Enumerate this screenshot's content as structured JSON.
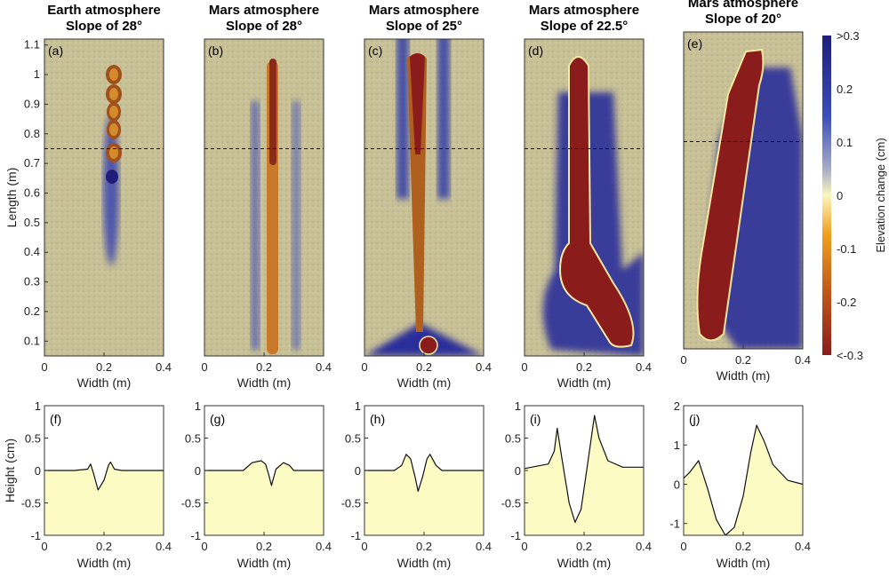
{
  "colorbar": {
    "label": "Elevation change (cm)",
    "ticks": [
      ">0.3",
      "0.2",
      "0.1",
      "0",
      "-0.1",
      "-0.2",
      "<-0.3"
    ],
    "colors": [
      "#1e1f7a",
      "#3b4db8",
      "#9fa6c8",
      "#fbf6c0",
      "#f0a020",
      "#c05a1a",
      "#8b1c1c"
    ]
  },
  "chart_data": [
    {
      "type": "heatmap",
      "panel": "(a)",
      "title": [
        "Earth atmosphere",
        "Slope of 28°"
      ],
      "xlabel": "Width (m)",
      "ylabel": "Length (m)",
      "xlim": [
        0,
        0.4
      ],
      "ylim": [
        0.05,
        1.12
      ],
      "xticks": [
        "0",
        "0.2",
        "0.4"
      ],
      "yticks": [
        "0.1",
        "0.2",
        "0.3",
        "0.4",
        "0.5",
        "0.6",
        "0.7",
        "0.8",
        "0.9",
        "1",
        "1.1"
      ],
      "profile_line_length": 0.75
    },
    {
      "type": "heatmap",
      "panel": "(b)",
      "title": [
        "Mars atmosphere",
        "Slope of 28°"
      ],
      "xlabel": "Width (m)",
      "xlim": [
        0,
        0.4
      ],
      "xticks": [
        "0",
        "0.2",
        "0.4"
      ],
      "profile_line_length": 0.75
    },
    {
      "type": "heatmap",
      "panel": "(c)",
      "title": [
        "Mars atmosphere",
        "Slope of 25°"
      ],
      "xlabel": "Width (m)",
      "xlim": [
        0,
        0.4
      ],
      "xticks": [
        "0",
        "0.2",
        "0.4"
      ],
      "profile_line_length": 0.75
    },
    {
      "type": "heatmap",
      "panel": "(d)",
      "title": [
        "Mars atmosphere",
        "Slope of 22.5°"
      ],
      "xlabel": "Width (m)",
      "xlim": [
        0,
        0.4
      ],
      "xticks": [
        "0",
        "0.2",
        "0.4"
      ],
      "profile_line_length": 0.75
    },
    {
      "type": "heatmap",
      "panel": "(e)",
      "title": [
        "Mars atmosphere",
        "Slope of 20°"
      ],
      "xlabel": "Width (m)",
      "xlim": [
        0,
        0.4
      ],
      "xticks": [
        "0",
        "0.2",
        "0.4"
      ],
      "profile_line_length": 0.75
    },
    {
      "type": "line",
      "panel": "(f)",
      "xlabel": "Width (m)",
      "ylabel": "Height (cm)",
      "xlim": [
        0,
        0.4
      ],
      "ylim": [
        -1,
        1
      ],
      "yticks": [
        "-1",
        "-0.5",
        "0",
        "0.5",
        "1"
      ],
      "xticks": [
        "0",
        "0.2",
        "0.4"
      ],
      "x": [
        0,
        0.1,
        0.145,
        0.155,
        0.165,
        0.18,
        0.2,
        0.215,
        0.222,
        0.235,
        0.26,
        0.4
      ],
      "y": [
        0,
        0,
        0.02,
        0.1,
        -0.05,
        -0.3,
        -0.15,
        0.08,
        0.13,
        0.02,
        0,
        0
      ]
    },
    {
      "type": "line",
      "panel": "(g)",
      "xlabel": "Width (m)",
      "xlim": [
        0,
        0.4
      ],
      "ylim": [
        -1,
        1
      ],
      "yticks": [
        "-1",
        "-0.5",
        "0",
        "0.5",
        "1"
      ],
      "xticks": [
        "0",
        "0.2",
        "0.4"
      ],
      "x": [
        0,
        0.13,
        0.16,
        0.19,
        0.205,
        0.215,
        0.225,
        0.24,
        0.265,
        0.285,
        0.3,
        0.4
      ],
      "y": [
        0,
        0,
        0.12,
        0.15,
        0.1,
        -0.05,
        -0.23,
        0.02,
        0.12,
        0.08,
        0,
        0
      ]
    },
    {
      "type": "line",
      "panel": "(h)",
      "xlabel": "Width (m)",
      "xlim": [
        0,
        0.4
      ],
      "ylim": [
        -1,
        1
      ],
      "yticks": [
        "-1",
        "-0.5",
        "0",
        "0.5",
        "1"
      ],
      "xticks": [
        "0",
        "0.2",
        "0.4"
      ],
      "x": [
        0,
        0.1,
        0.125,
        0.14,
        0.155,
        0.17,
        0.18,
        0.195,
        0.21,
        0.22,
        0.24,
        0.26,
        0.4
      ],
      "y": [
        0,
        0,
        0.08,
        0.25,
        0.18,
        -0.1,
        -0.32,
        -0.1,
        0.18,
        0.25,
        0.08,
        0,
        0
      ]
    },
    {
      "type": "line",
      "panel": "(i)",
      "xlabel": "Width (m)",
      "xlim": [
        0,
        0.4
      ],
      "ylim": [
        -1,
        1
      ],
      "yticks": [
        "-1",
        "-0.5",
        "0",
        "0.5",
        "1"
      ],
      "xticks": [
        "0",
        "0.2",
        "0.4"
      ],
      "x": [
        0,
        0.08,
        0.1,
        0.11,
        0.125,
        0.15,
        0.17,
        0.19,
        0.215,
        0.235,
        0.25,
        0.28,
        0.33,
        0.4
      ],
      "y": [
        0.03,
        0.1,
        0.3,
        0.65,
        0.2,
        -0.5,
        -0.8,
        -0.6,
        0.2,
        0.85,
        0.5,
        0.15,
        0.05,
        0.05
      ]
    },
    {
      "type": "line",
      "panel": "(j)",
      "xlabel": "Width (m)",
      "xlim": [
        0,
        0.4
      ],
      "ylim": [
        -1.3,
        2
      ],
      "yticks": [
        "-1",
        "0",
        "1",
        "2"
      ],
      "xticks": [
        "0",
        "0.2",
        "0.4"
      ],
      "x": [
        0,
        0.02,
        0.05,
        0.08,
        0.11,
        0.14,
        0.17,
        0.2,
        0.225,
        0.245,
        0.27,
        0.3,
        0.35,
        0.4
      ],
      "y": [
        0.15,
        0.3,
        0.6,
        -0.1,
        -0.9,
        -1.3,
        -1.1,
        -0.3,
        0.8,
        1.5,
        1.1,
        0.5,
        0.1,
        0
      ]
    }
  ]
}
